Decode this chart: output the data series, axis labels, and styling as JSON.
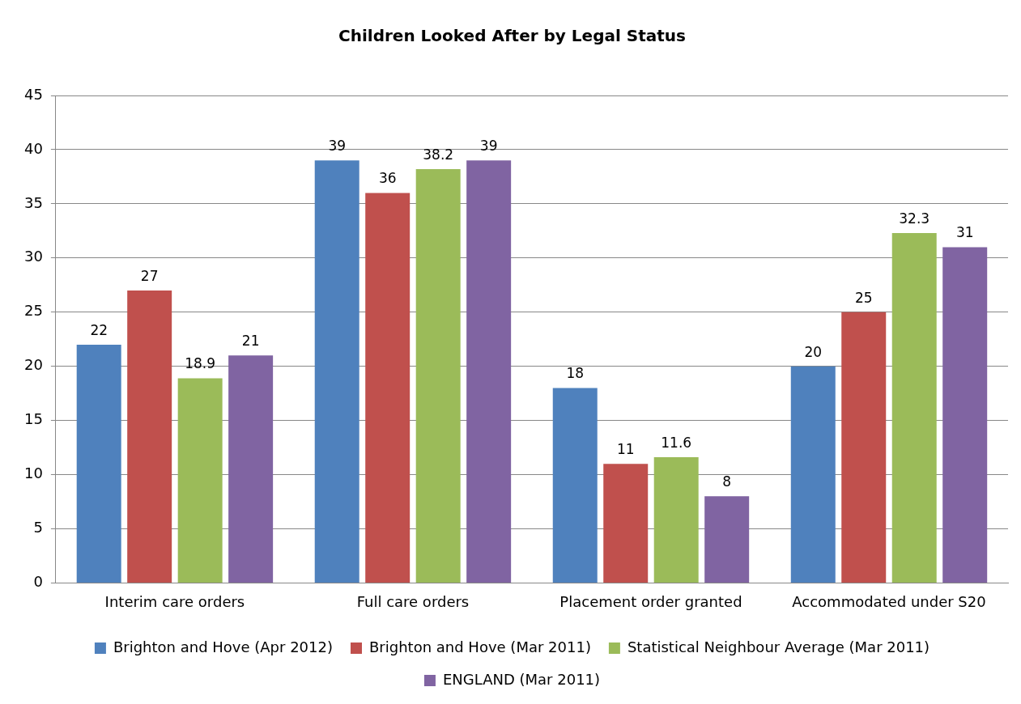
{
  "chart_data": {
    "type": "bar",
    "title": "Children Looked After by Legal Status",
    "categories": [
      "Interim care orders",
      "Full care orders",
      "Placement order granted",
      "Accommodated under S20"
    ],
    "series": [
      {
        "name": "Brighton and Hove (Apr 2012)",
        "color": "#4f81bd",
        "values": [
          22,
          39,
          18,
          20
        ]
      },
      {
        "name": "Brighton and Hove (Mar 2011)",
        "color": "#c0504d",
        "values": [
          27,
          36,
          11,
          25
        ]
      },
      {
        "name": "Statistical Neighbour Average (Mar 2011)",
        "color": "#9bbb59",
        "values": [
          18.9,
          38.2,
          11.6,
          32.3
        ]
      },
      {
        "name": "ENGLAND (Mar 2011)",
        "color": "#8064a2",
        "values": [
          21,
          39,
          8,
          31
        ]
      }
    ],
    "ylim": [
      0,
      45
    ],
    "yticks": [
      0,
      5,
      10,
      15,
      20,
      25,
      30,
      35,
      40,
      45
    ],
    "grid": "y",
    "legend": "bottom",
    "data_labels": true
  }
}
